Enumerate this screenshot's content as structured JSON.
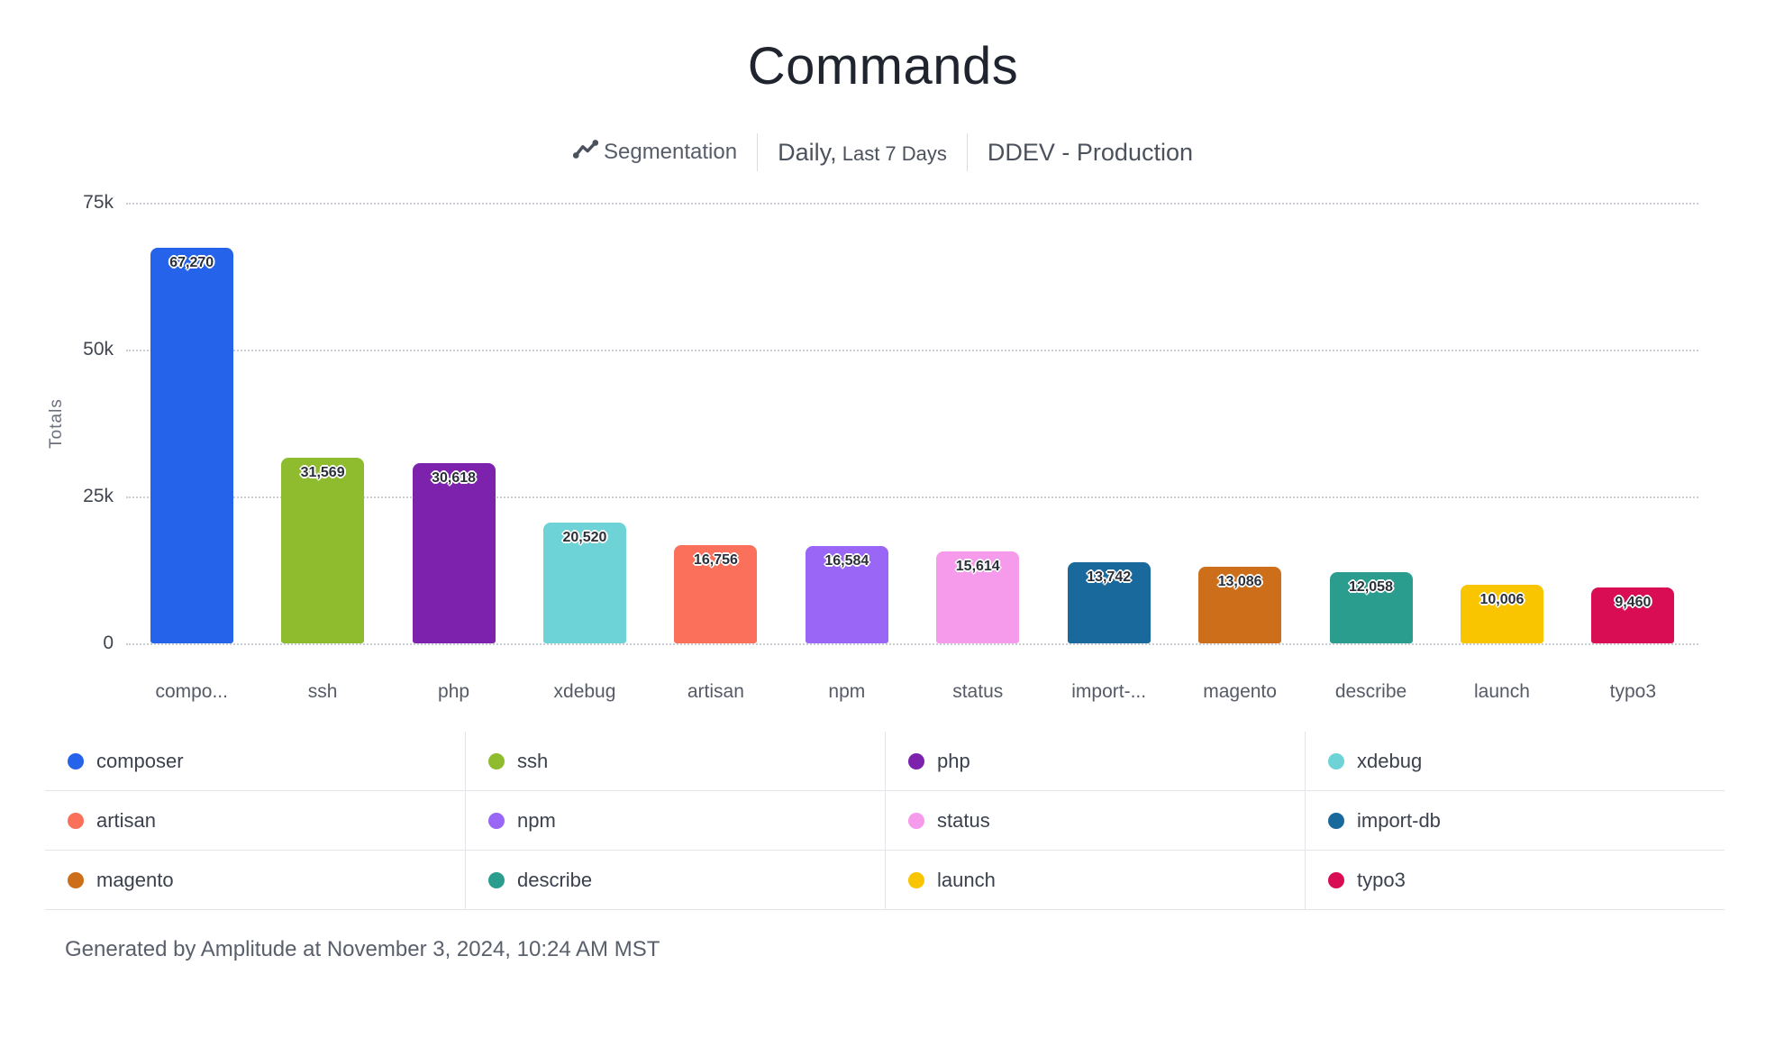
{
  "header": {
    "title": "Commands",
    "segmentation_label": "Segmentation",
    "date_range_primary": "Daily,",
    "date_range_secondary": "Last 7 Days",
    "project": "DDEV - Production"
  },
  "chart_data": {
    "type": "bar",
    "title": "Commands",
    "categories": [
      "composer",
      "ssh",
      "php",
      "xdebug",
      "artisan",
      "npm",
      "status",
      "import-db",
      "magento",
      "describe",
      "launch",
      "typo3"
    ],
    "x_tick_labels": [
      "compo...",
      "ssh",
      "php",
      "xdebug",
      "artisan",
      "npm",
      "status",
      "import-...",
      "magento",
      "describe",
      "launch",
      "typo3"
    ],
    "values": [
      67270,
      31569,
      30618,
      20520,
      16756,
      16584,
      15614,
      13742,
      13086,
      12058,
      10006,
      9460
    ],
    "value_labels": [
      "67,270",
      "31,569",
      "30,618",
      "20,520",
      "16,756",
      "16,584",
      "15,614",
      "13,742",
      "13,086",
      "12,058",
      "10,006",
      "9,460"
    ],
    "colors": [
      "#2563eb",
      "#8fbc2f",
      "#7c22ac",
      "#6ed3d6",
      "#fa705a",
      "#9966f5",
      "#f69aec",
      "#19699c",
      "#cc6e1a",
      "#2a9d8f",
      "#f8c500",
      "#d90d53"
    ],
    "xlabel": "",
    "ylabel": "Totals",
    "ylim": [
      0,
      75000
    ],
    "y_ticks": [
      {
        "label": "75k",
        "value": 75000
      },
      {
        "label": "50k",
        "value": 50000
      },
      {
        "label": "25k",
        "value": 25000
      },
      {
        "label": "0",
        "value": 0
      }
    ],
    "grid": "horizontal-dotted",
    "legend_position": "bottom"
  },
  "legend": {
    "items": [
      {
        "label": "composer",
        "color": "#2563eb"
      },
      {
        "label": "ssh",
        "color": "#8fbc2f"
      },
      {
        "label": "php",
        "color": "#7c22ac"
      },
      {
        "label": "xdebug",
        "color": "#6ed3d6"
      },
      {
        "label": "artisan",
        "color": "#fa705a"
      },
      {
        "label": "npm",
        "color": "#9966f5"
      },
      {
        "label": "status",
        "color": "#f69aec"
      },
      {
        "label": "import-db",
        "color": "#19699c"
      },
      {
        "label": "magento",
        "color": "#cc6e1a"
      },
      {
        "label": "describe",
        "color": "#2a9d8f"
      },
      {
        "label": "launch",
        "color": "#f8c500"
      },
      {
        "label": "typo3",
        "color": "#d90d53"
      }
    ]
  },
  "footer": {
    "text": "Generated by Amplitude at November 3, 2024, 10:24 AM MST"
  }
}
